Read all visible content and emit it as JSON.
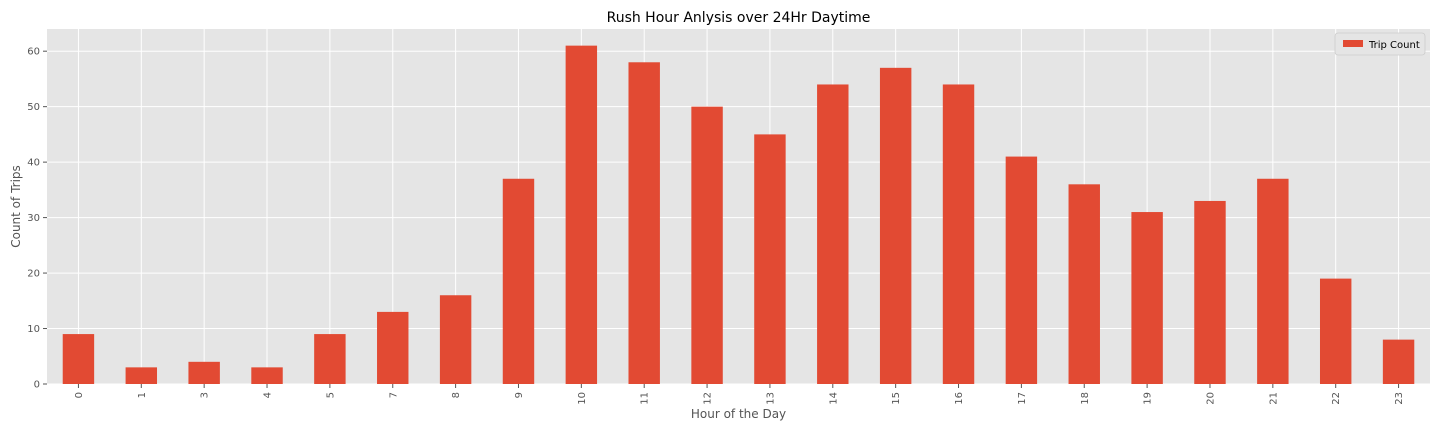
{
  "chart_data": {
    "type": "bar",
    "title": "Rush Hour Anlysis over 24Hr Daytime",
    "xlabel": "Hour of the Day",
    "ylabel": "Count of Trips",
    "categories": [
      "0",
      "1",
      "3",
      "4",
      "5",
      "7",
      "8",
      "9",
      "10",
      "11",
      "12",
      "13",
      "14",
      "15",
      "16",
      "17",
      "18",
      "19",
      "20",
      "21",
      "22",
      "23"
    ],
    "series": [
      {
        "name": "Trip Count",
        "values": [
          9,
          3,
          4,
          3,
          9,
          13,
          16,
          37,
          61,
          58,
          50,
          45,
          54,
          57,
          54,
          41,
          36,
          31,
          33,
          37,
          19,
          8
        ]
      }
    ],
    "ylim": [
      0,
      64
    ],
    "yticks": [
      0,
      10,
      20,
      30,
      40,
      50,
      60
    ],
    "ytick_labels": [
      "0",
      "10",
      "20",
      "30",
      "40",
      "50",
      "60"
    ],
    "grid": true,
    "legend_position": "top-right",
    "colors": {
      "bar": "#e24a33",
      "plot_bg": "#e5e5e5",
      "grid": "#ffffff",
      "text": "#555555"
    }
  }
}
